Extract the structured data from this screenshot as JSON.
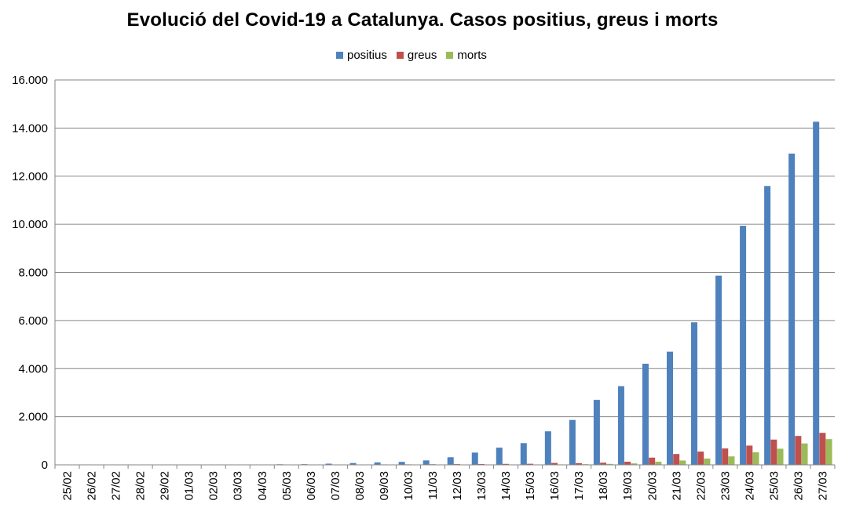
{
  "chart_data": {
    "type": "bar",
    "title": "Evolució del Covid-19 a Catalunya. Casos positius, greus i morts",
    "xlabel": "",
    "ylabel": "",
    "ylim": [
      0,
      16000
    ],
    "yticks": [
      "0",
      "2.000",
      "4.000",
      "6.000",
      "8.000",
      "10.000",
      "12.000",
      "14.000",
      "16.000"
    ],
    "ytick_values": [
      0,
      2000,
      4000,
      6000,
      8000,
      10000,
      12000,
      14000,
      16000
    ],
    "grid": true,
    "legend_position": "top-center",
    "categories": [
      "25/02",
      "26/02",
      "27/02",
      "28/02",
      "29/02",
      "01/03",
      "02/03",
      "03/03",
      "04/03",
      "05/03",
      "06/03",
      "07/03",
      "08/03",
      "09/03",
      "10/03",
      "11/03",
      "12/03",
      "13/03",
      "14/03",
      "15/03",
      "16/03",
      "17/03",
      "18/03",
      "19/03",
      "20/03",
      "21/03",
      "22/03",
      "23/03",
      "24/03",
      "25/03",
      "26/03",
      "27/03"
    ],
    "series": [
      {
        "name": "positius",
        "color": "#4F81BD",
        "values": [
          1,
          2,
          3,
          6,
          6,
          6,
          12,
          15,
          15,
          24,
          28,
          49,
          75,
          101,
          124,
          184,
          316,
          509,
          715,
          903,
          1394,
          1866,
          2702,
          3270,
          4203,
          4704,
          5925,
          7864,
          9937,
          11592,
          12940,
          14263
        ]
      },
      {
        "name": "greus",
        "color": "#C0504D",
        "values": [
          0,
          0,
          0,
          0,
          0,
          0,
          0,
          0,
          0,
          10,
          10,
          12,
          14,
          18,
          20,
          25,
          30,
          35,
          40,
          45,
          80,
          70,
          90,
          130,
          300,
          450,
          550,
          680,
          800,
          1050,
          1200,
          1330
        ]
      },
      {
        "name": "morts",
        "color": "#9BBB59",
        "values": [
          0,
          0,
          0,
          0,
          0,
          0,
          0,
          0,
          0,
          0,
          1,
          1,
          1,
          2,
          3,
          3,
          5,
          6,
          9,
          12,
          18,
          27,
          40,
          60,
          130,
          180,
          260,
          350,
          520,
          670,
          890,
          1070
        ]
      }
    ]
  }
}
